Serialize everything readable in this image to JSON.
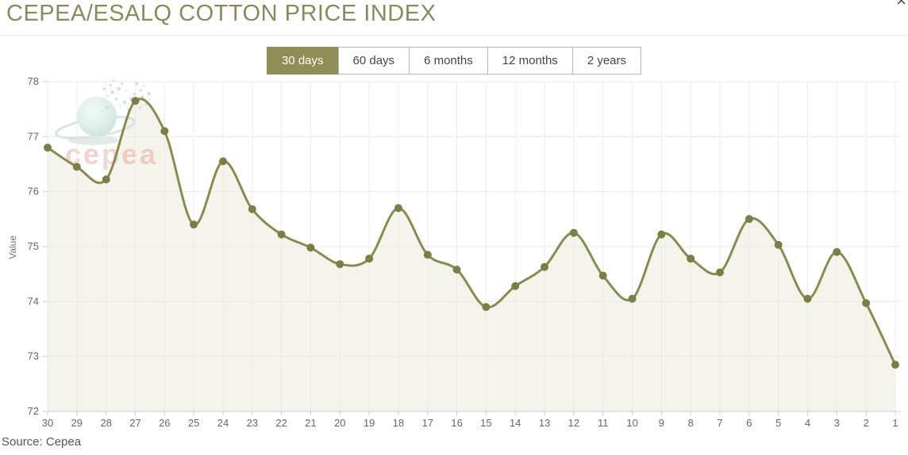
{
  "window": {
    "close_label": "×"
  },
  "header": {
    "title": "CEPEA/ESALQ COTTON PRICE INDEX"
  },
  "tabs": [
    {
      "label": "30 days",
      "active": true
    },
    {
      "label": "60 days",
      "active": false
    },
    {
      "label": "6 months",
      "active": false
    },
    {
      "label": "12 months",
      "active": false
    },
    {
      "label": "2 years",
      "active": false
    }
  ],
  "watermark": {
    "text": "cepea",
    "name": "cepea-globe-watermark"
  },
  "footer": {
    "source": "Source: Cepea"
  },
  "chart_data": {
    "type": "area",
    "title": "CEPEA/ESALQ COTTON PRICE INDEX",
    "xlabel": "",
    "ylabel": "Value",
    "x": [
      30,
      29,
      28,
      27,
      26,
      25,
      24,
      23,
      22,
      21,
      20,
      19,
      18,
      17,
      16,
      15,
      14,
      13,
      12,
      11,
      10,
      9,
      8,
      7,
      6,
      5,
      4,
      3,
      2,
      1
    ],
    "values": [
      76.8,
      76.45,
      76.22,
      77.65,
      77.1,
      75.4,
      76.55,
      75.68,
      75.22,
      74.98,
      74.68,
      74.78,
      75.7,
      74.85,
      74.58,
      73.9,
      74.28,
      74.63,
      75.25,
      74.47,
      74.05,
      75.22,
      74.78,
      74.53,
      75.5,
      75.03,
      74.05,
      74.9,
      73.97,
      72.85
    ],
    "ylim": [
      72,
      78
    ],
    "yticks": [
      72,
      73,
      74,
      75,
      76,
      77,
      78
    ],
    "grid": true,
    "legend": "none",
    "line_color": "#8b8b4e",
    "marker_color": "#7d7d46",
    "fill_color": "#f4f4ec",
    "grid_color": "#e9e9e4",
    "axis_color": "#cccccc",
    "tick_label_color": "#666666",
    "accent_color": "#8e8e55",
    "watermark_text_color": "#e08d82"
  }
}
